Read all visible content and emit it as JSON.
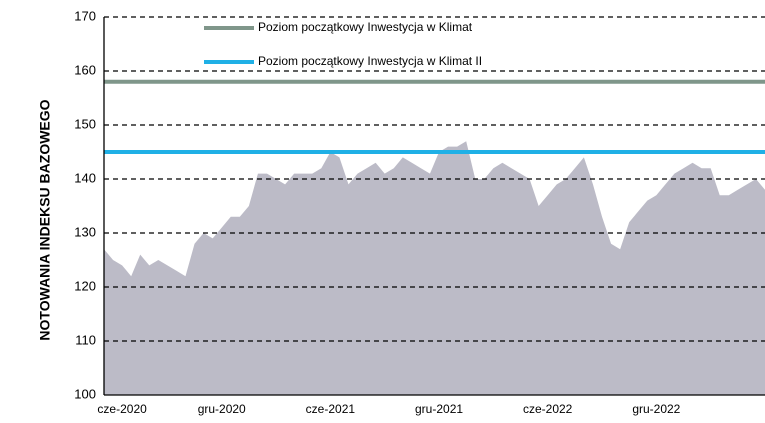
{
  "chart_data": {
    "type": "area",
    "y_label": "NOTOWANIA INDEKSU BAZOWEGO",
    "categories": [
      null,
      null,
      "cze-2020",
      null,
      null,
      null,
      null,
      null,
      null,
      null,
      null,
      null,
      null,
      "gru-2020",
      null,
      null,
      null,
      null,
      null,
      null,
      null,
      null,
      null,
      null,
      null,
      "cze-2021",
      null,
      null,
      null,
      null,
      null,
      null,
      null,
      null,
      null,
      null,
      null,
      "gru-2021",
      null,
      null,
      null,
      null,
      null,
      null,
      null,
      null,
      null,
      null,
      null,
      "cze-2022",
      null,
      null,
      null,
      null,
      null,
      null,
      null,
      null,
      null,
      null,
      null,
      "gru-2022",
      null,
      null,
      null,
      null,
      null,
      null,
      null,
      null,
      null,
      null,
      null,
      null
    ],
    "values": [
      127,
      125,
      124,
      122,
      126,
      124,
      125,
      124,
      123,
      122,
      128,
      130,
      129,
      131,
      133,
      133,
      135,
      141,
      141,
      140,
      139,
      141,
      141,
      141,
      142,
      145,
      144,
      139,
      141,
      142,
      143,
      141,
      142,
      144,
      143,
      142,
      141,
      145,
      146,
      146,
      147,
      140,
      140,
      142,
      143,
      142,
      141,
      140,
      135,
      137,
      139,
      140,
      142,
      144,
      139,
      133,
      128,
      127,
      132,
      134,
      136,
      137,
      139,
      141,
      142,
      143,
      142,
      142,
      137,
      137,
      138,
      139,
      140,
      138
    ],
    "color": "#bcbbc7",
    "reference_lines": [
      {
        "name": "Poziom początkowy Inwestycja w Klimat",
        "color": "#7f968a",
        "value": 158
      },
      {
        "name": "Poziom początkowy Inwestycja w Klimat II",
        "color": "#1fb0e6",
        "value": 145
      }
    ],
    "ylim": [
      100,
      170
    ],
    "yticks": [
      100,
      110,
      120,
      130,
      140,
      150,
      160,
      170
    ],
    "grid": true
  }
}
